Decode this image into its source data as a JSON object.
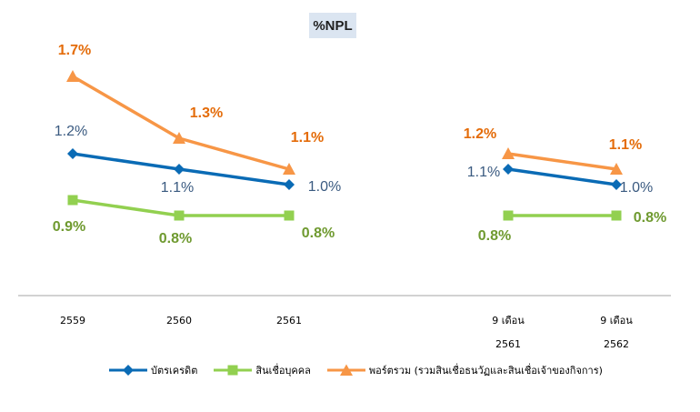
{
  "chart_data": {
    "type": "line",
    "title": "%NPL",
    "categories": [
      {
        "line1": "2559",
        "line2": ""
      },
      {
        "line1": "2560",
        "line2": ""
      },
      {
        "line1": "2561",
        "line2": ""
      },
      {
        "line1": "9 เดือน",
        "line2": "2561"
      },
      {
        "line1": "9 เดือน",
        "line2": "2562"
      }
    ],
    "segments": [
      [
        0,
        1,
        2
      ],
      [
        3,
        4
      ]
    ],
    "series": [
      {
        "name": "บัตรเครดิต",
        "color": "#0a6bb5",
        "label_color": "#3a5a80",
        "label_bold": false,
        "marker": "diamond",
        "values": [
          1.2,
          1.1,
          1.0,
          1.1,
          1.0
        ],
        "labels": [
          "1.2%",
          "1.1%",
          "1.0%",
          "1.1%",
          "1.0%"
        ]
      },
      {
        "name": "สินเชื่อบุคคล",
        "color": "#92d050",
        "label_color": "#6f9a30",
        "label_bold": true,
        "marker": "square",
        "values": [
          0.9,
          0.8,
          0.8,
          0.8,
          0.8
        ],
        "labels": [
          "0.9%",
          "0.8%",
          "0.8%",
          "0.8%",
          "0.8%"
        ]
      },
      {
        "name": "พอร์ตรวม (รวมสินเชื่อธนวัฏและสินเชื่อเจ้าของกิจการ)",
        "color": "#f79646",
        "label_color": "#e46c0a",
        "label_bold": true,
        "marker": "triangle",
        "values": [
          1.7,
          1.3,
          1.1,
          1.2,
          1.1
        ],
        "labels": [
          "1.7%",
          "1.3%",
          "1.1%",
          "1.2%",
          "1.1%"
        ]
      }
    ],
    "legend_position": "bottom",
    "grid": false
  }
}
